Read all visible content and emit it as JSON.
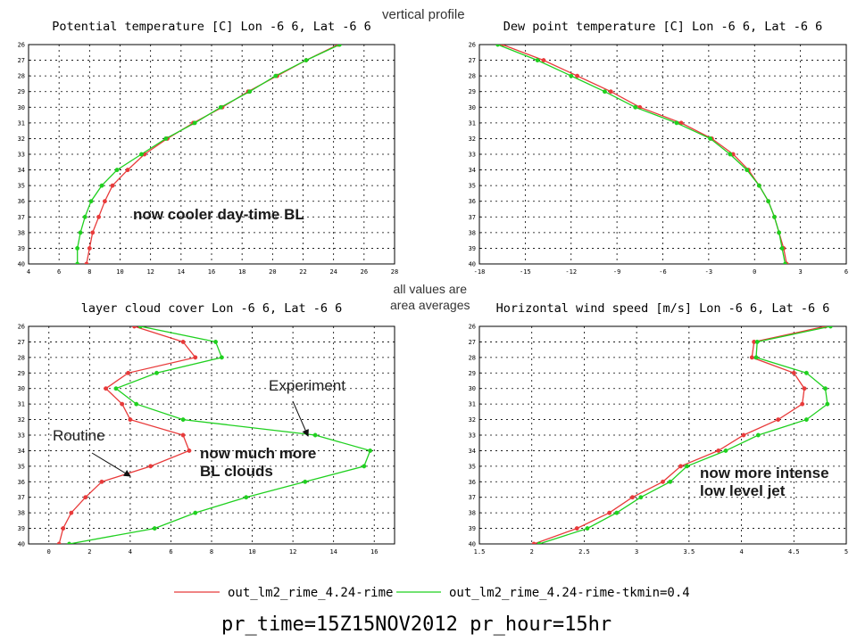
{
  "annotations": {
    "vertical_profile": "vertical profile",
    "area_averages": [
      "all values are",
      "area averages"
    ],
    "cooler_bl": "now cooler day-time BL",
    "more_clouds": [
      "now much more",
      "BL clouds"
    ],
    "intense_jet": [
      "now more intense",
      "low level jet"
    ],
    "experiment": "Experiment",
    "routine": "Routine"
  },
  "legend": {
    "routine": "out_lm2_rime_4.24-rime",
    "experiment": "out_lm2_rime_4.24-rime-tkmin=0.4"
  },
  "footer": "pr_time=15Z15NOV2012 pr_hour=15hr",
  "colors": {
    "routine": "#e83a3a",
    "experiment": "#1fd01f"
  },
  "chart_data": [
    {
      "type": "line",
      "title": "Potential temperature [C] Lon -6 6, Lat -6 6",
      "xlim": [
        4,
        28
      ],
      "xticks": [
        4,
        6,
        8,
        10,
        12,
        14,
        16,
        18,
        20,
        22,
        24,
        26,
        28
      ],
      "ylim": [
        26,
        40
      ],
      "yticks": [
        26,
        27,
        28,
        29,
        30,
        31,
        32,
        33,
        34,
        35,
        36,
        37,
        38,
        39,
        40
      ],
      "y": [
        26,
        27,
        28,
        29,
        30,
        31,
        32,
        33,
        34,
        35,
        36,
        37,
        38,
        39,
        40
      ],
      "grid": true,
      "series": [
        {
          "name": "out_lm2_rime_4.24-rime",
          "values": [
            24.3,
            22.2,
            20.3,
            18.4,
            16.7,
            14.8,
            13.1,
            11.6,
            10.5,
            9.5,
            9.0,
            8.6,
            8.2,
            8.0,
            7.8
          ]
        },
        {
          "name": "out_lm2_rime_4.24-rime-tkmin=0.4",
          "values": [
            24.4,
            22.2,
            20.2,
            18.5,
            16.6,
            14.9,
            13.0,
            11.4,
            9.8,
            8.8,
            8.1,
            7.7,
            7.4,
            7.2,
            7.2
          ]
        }
      ]
    },
    {
      "type": "line",
      "title": "Dew point temperature [C] Lon -6 6, Lat -6 6",
      "xlim": [
        -18,
        6
      ],
      "xticks": [
        -18,
        -15,
        -12,
        -9,
        -6,
        -3,
        0,
        3,
        6
      ],
      "ylim": [
        26,
        40
      ],
      "yticks": [
        26,
        27,
        28,
        29,
        30,
        31,
        32,
        33,
        34,
        35,
        36,
        37,
        38,
        39,
        40
      ],
      "y": [
        26,
        27,
        28,
        29,
        30,
        31,
        32,
        33,
        34,
        35,
        36,
        37,
        38,
        39,
        40
      ],
      "grid": true,
      "series": [
        {
          "name": "out_lm2_rime_4.24-rime",
          "values": [
            -16.5,
            -13.8,
            -11.6,
            -9.4,
            -7.5,
            -4.8,
            -2.8,
            -1.4,
            -0.4,
            0.3,
            0.9,
            1.3,
            1.6,
            1.9,
            2.1
          ]
        },
        {
          "name": "out_lm2_rime_4.24-rime-tkmin=0.4",
          "values": [
            -16.8,
            -14.2,
            -12.0,
            -9.8,
            -7.8,
            -5.1,
            -2.9,
            -1.6,
            -0.5,
            0.3,
            0.9,
            1.3,
            1.6,
            1.8,
            2.0
          ]
        }
      ]
    },
    {
      "type": "line",
      "title": "layer cloud cover Lon -6 6, Lat -6 6",
      "xlim": [
        -1,
        17
      ],
      "xticks": [
        0,
        2,
        4,
        6,
        8,
        10,
        12,
        14,
        16
      ],
      "ylim": [
        26,
        40
      ],
      "yticks": [
        26,
        27,
        28,
        29,
        30,
        31,
        32,
        33,
        34,
        35,
        36,
        37,
        38,
        39,
        40
      ],
      "y": [
        26,
        27,
        28,
        29,
        30,
        31,
        32,
        33,
        34,
        35,
        36,
        37,
        38,
        39,
        40
      ],
      "grid": true,
      "series": [
        {
          "name": "out_lm2_rime_4.24-rime",
          "values": [
            4.2,
            6.6,
            7.2,
            3.9,
            2.8,
            3.6,
            4.0,
            6.6,
            6.9,
            5.0,
            2.6,
            1.8,
            1.1,
            0.7,
            0.5
          ]
        },
        {
          "name": "out_lm2_rime_4.24-rime-tkmin=0.4",
          "values": [
            4.5,
            8.2,
            8.5,
            5.3,
            3.3,
            4.3,
            6.6,
            13.1,
            15.8,
            15.5,
            12.6,
            9.7,
            7.2,
            5.2,
            1.0
          ]
        }
      ]
    },
    {
      "type": "line",
      "title": "Horizontal wind speed [m/s] Lon -6 6, Lat -6 6",
      "xlim": [
        1.5,
        5
      ],
      "xticks": [
        1.5,
        2,
        2.5,
        3,
        3.5,
        4,
        4.5,
        5
      ],
      "ylim": [
        26,
        40
      ],
      "yticks": [
        26,
        27,
        28,
        29,
        30,
        31,
        32,
        33,
        34,
        35,
        36,
        37,
        38,
        39,
        40
      ],
      "y": [
        26,
        27,
        28,
        29,
        30,
        31,
        32,
        33,
        34,
        35,
        36,
        37,
        38,
        39,
        40
      ],
      "grid": true,
      "series": [
        {
          "name": "out_lm2_rime_4.24-rime",
          "values": [
            4.8,
            4.12,
            4.1,
            4.5,
            4.6,
            4.58,
            4.35,
            4.02,
            3.78,
            3.42,
            3.25,
            2.96,
            2.74,
            2.43,
            2.02
          ]
        },
        {
          "name": "out_lm2_rime_4.24-rime-tkmin=0.4",
          "values": [
            4.85,
            4.15,
            4.14,
            4.62,
            4.8,
            4.82,
            4.62,
            4.16,
            3.85,
            3.48,
            3.32,
            3.04,
            2.81,
            2.53,
            2.07
          ]
        }
      ]
    }
  ]
}
